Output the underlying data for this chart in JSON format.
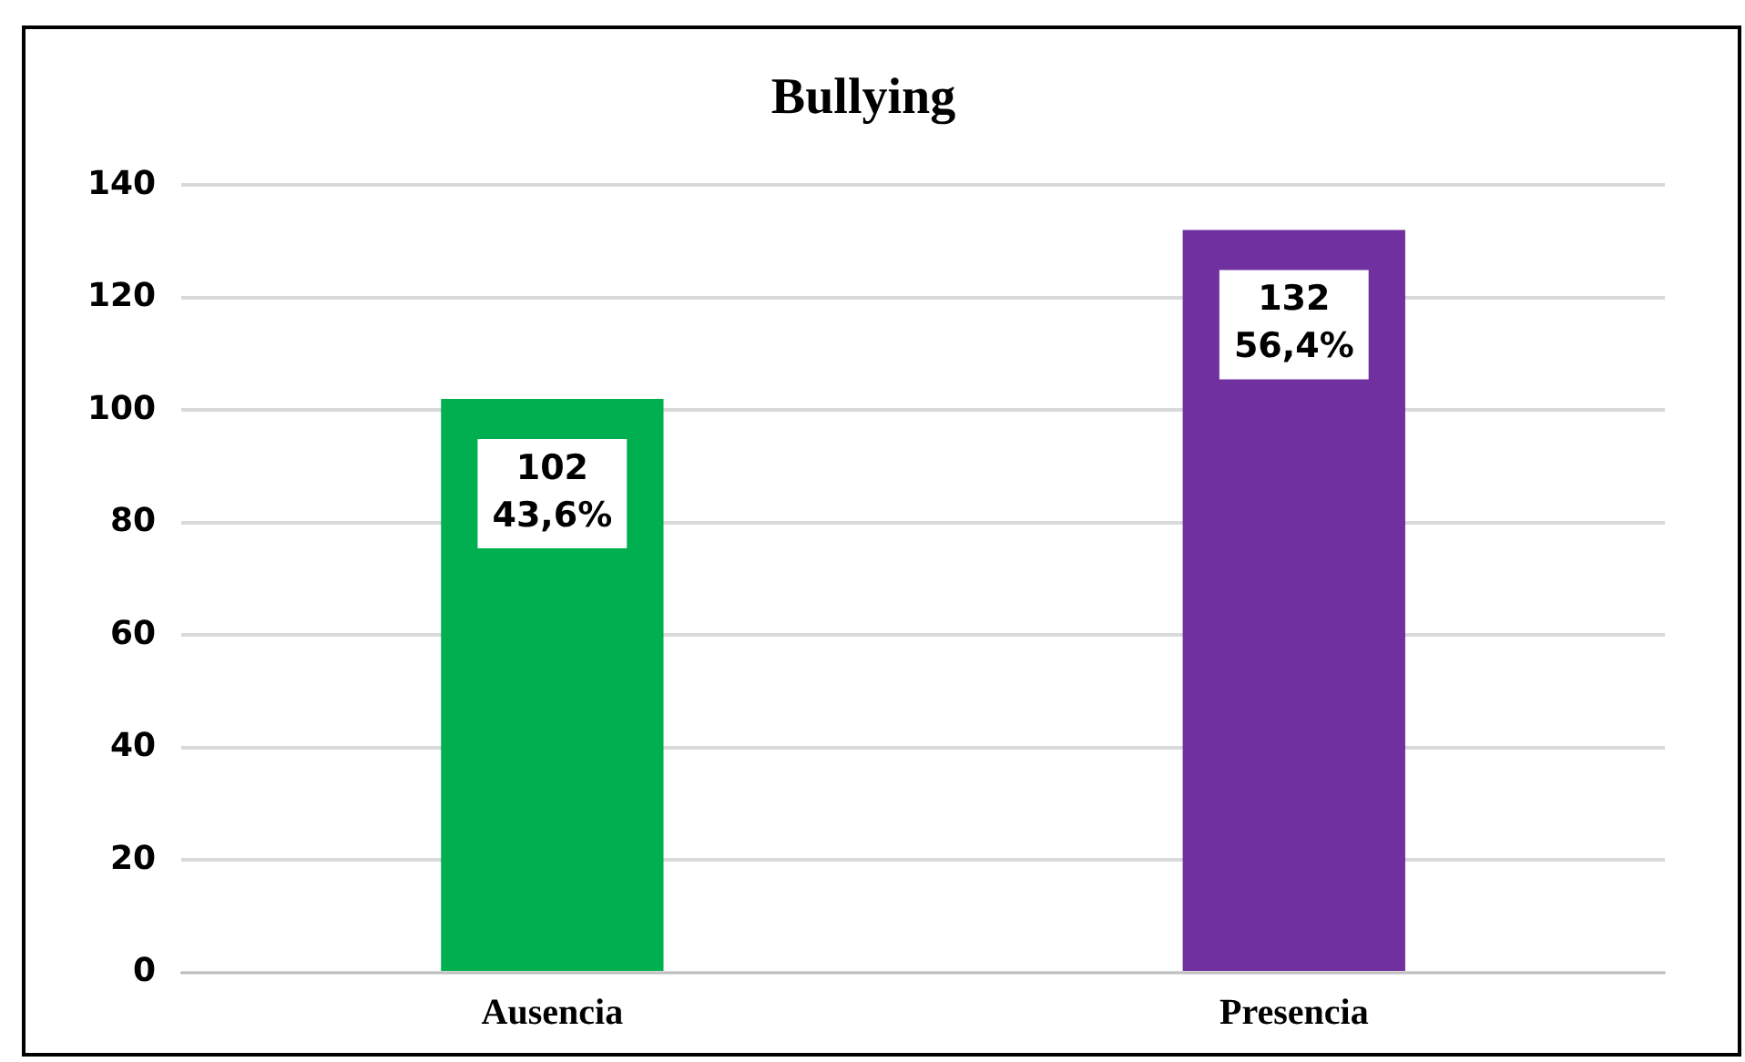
{
  "chart_data": {
    "type": "bar",
    "title": "Bullying",
    "categories": [
      "Ausencia",
      "Presencia"
    ],
    "values": [
      102,
      132
    ],
    "colors": [
      "#00b050",
      "#7030a0"
    ],
    "value_labels": [
      "102\n43,6%",
      "132\n56,4%"
    ],
    "ylim": [
      0,
      140
    ],
    "yticks": [
      0,
      20,
      40,
      60,
      80,
      100,
      120,
      140
    ],
    "grid": "y",
    "legend": false
  }
}
